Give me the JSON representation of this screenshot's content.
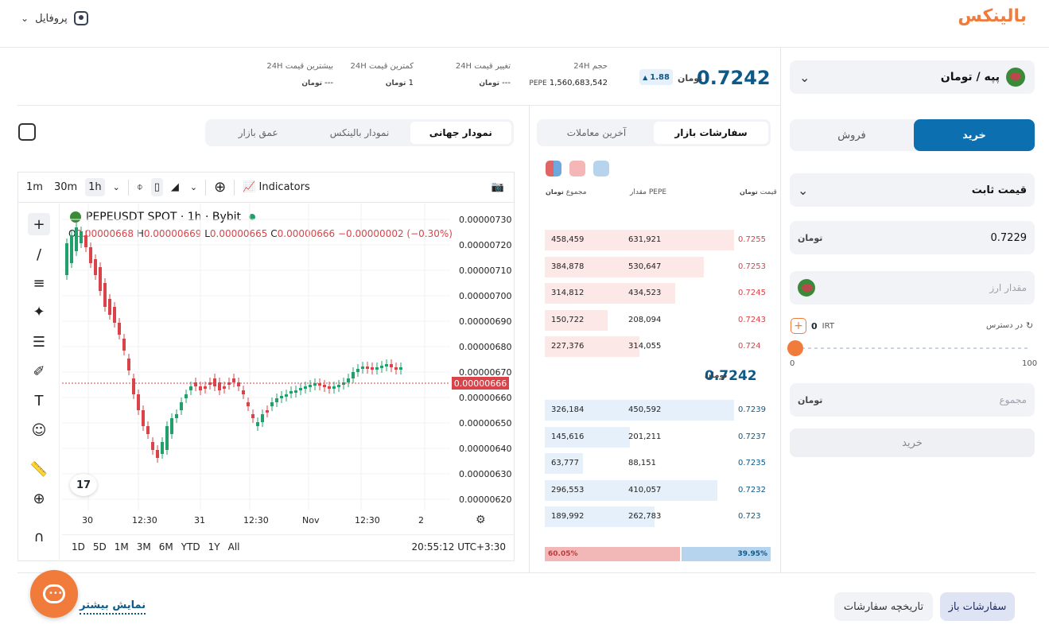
{
  "header": {
    "logo_text": "بالینکس",
    "profile_label": "پروفایل"
  },
  "market": {
    "pair_label": "پپه / تومان",
    "last_price": "0.7242",
    "currency_symbol": "تومان",
    "change_badge": "1.88",
    "stats": [
      {
        "label": "حجم 24H",
        "value": "1,560,683,542",
        "unit": "PEPE"
      },
      {
        "label": "تغییر قیمت 24H",
        "value": "---"
      },
      {
        "label": "کمترین قیمت 24H",
        "value": "1"
      },
      {
        "label": "بیشترین قیمت 24H",
        "value": "---"
      }
    ]
  },
  "order_form": {
    "buy_tab": "خرید",
    "sell_tab": "فروش",
    "order_type": "قیمت ثابت",
    "price_value": "0.7229",
    "amount_placeholder": "مقدار ارز",
    "available_label": "در دسترس",
    "available_value": "0",
    "available_unit": "IRT",
    "slider_min": "0",
    "slider_max": "100",
    "slider_value_percent": 0,
    "total_placeholder": "مجموع",
    "submit_label": "خرید"
  },
  "chart_tabs": [
    "نمودار جهانی",
    "نمودار بالینکس",
    "عمق بازار"
  ],
  "orderbook_tabs": [
    "سفارشات بازار",
    "آخرین معاملات"
  ],
  "tradingview": {
    "intervals": [
      "1m",
      "30m",
      "1h"
    ],
    "indicators_label": "Indicators",
    "symbol_title": "PEPEUSDT SPOT · 1h · Bybit",
    "ohlc": {
      "o_label": "O",
      "o": "0.00000668",
      "h_label": "H",
      "h": "0.00000669",
      "l_label": "L",
      "l": "0.00000665",
      "c_label": "C",
      "c": "0.00000666",
      "chg": "−0.00000002 (−0.30%)"
    },
    "y_ticks": [
      "0.00000730",
      "0.00000720",
      "0.00000710",
      "0.00000700",
      "0.00000690",
      "0.00000680",
      "0.00000670",
      "0.00000660",
      "0.00000650",
      "0.00000640",
      "0.00000630",
      "0.00000620"
    ],
    "current_price_tag": "0.00000666",
    "x_ticks": [
      "30",
      "12:30",
      "31",
      "12:30",
      "Nov",
      "12:30",
      "2"
    ],
    "ranges": [
      "1D",
      "5D",
      "1M",
      "3M",
      "6M",
      "YTD",
      "1Y",
      "All"
    ],
    "clock": "20:55:12 UTC+3:30",
    "tv_logo": "17"
  },
  "orderbook": {
    "headers": {
      "price": "قیمت",
      "amount": "مقدار",
      "amount_unit": "PEPE",
      "total": "مجموع"
    },
    "asks": [
      {
        "price": "0.7255",
        "amount": "631,921",
        "total": "458,459",
        "depth": 1.0
      },
      {
        "price": "0.7253",
        "amount": "530,647",
        "total": "384,878",
        "depth": 0.84
      },
      {
        "price": "0.7245",
        "amount": "434,523",
        "total": "314,812",
        "depth": 0.69
      },
      {
        "price": "0.7243",
        "amount": "208,094",
        "total": "150,722",
        "depth": 0.33
      },
      {
        "price": "0.724",
        "amount": "314,055",
        "total": "227,376",
        "depth": 0.5
      }
    ],
    "mid_price": "0.7242",
    "bids": [
      {
        "price": "0.7239",
        "amount": "450,592",
        "total": "326,184",
        "depth": 1.0
      },
      {
        "price": "0.7237",
        "amount": "201,211",
        "total": "145,616",
        "depth": 0.45
      },
      {
        "price": "0.7235",
        "amount": "88,151",
        "total": "63,777",
        "depth": 0.2
      },
      {
        "price": "0.7232",
        "amount": "410,057",
        "total": "296,553",
        "depth": 0.91
      },
      {
        "price": "0.723",
        "amount": "262,783",
        "total": "189,992",
        "depth": 0.58
      }
    ],
    "sell_ratio": "60.05%",
    "buy_ratio": "39.95%"
  },
  "bottom": {
    "open_orders": "سفارشات باز",
    "order_history": "تاریخچه سفارشات",
    "show_more": "نمایش بیشتر"
  },
  "colors": {
    "brand": "#f07b3a",
    "primary": "#0c6fb0",
    "ask": "#d9444a",
    "bid": "#0c5a8a"
  }
}
